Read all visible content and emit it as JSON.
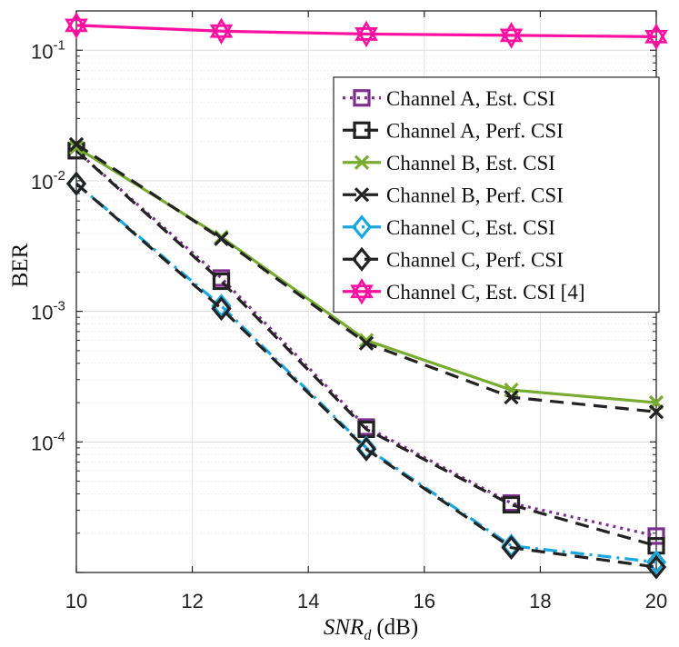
{
  "chart_data": {
    "type": "line",
    "title": "",
    "xlabel": "SNR_d (dB)",
    "xlabel_main": "SNR",
    "xlabel_sub": "d",
    "xlabel_unit": "(dB)",
    "ylabel": "BER",
    "xlim": [
      10,
      20
    ],
    "ylim": [
      1e-05,
      0.2
    ],
    "yscale": "log",
    "grid": true,
    "legend_position": "top-right",
    "x_ticks": [
      "10",
      "12",
      "14",
      "16",
      "18",
      "20"
    ],
    "y_ticks": [
      {
        "base": "10",
        "exp": "-1"
      },
      {
        "base": "10",
        "exp": "-2"
      },
      {
        "base": "10",
        "exp": "-3"
      },
      {
        "base": "10",
        "exp": "-4"
      }
    ],
    "x": [
      10,
      12.5,
      15,
      17.5,
      20
    ],
    "series": [
      {
        "name": "Channel A, Est.  CSI",
        "color": "#7e2f8e",
        "dash": "dot",
        "marker": "square",
        "values": [
          0.017,
          0.0018,
          0.00013,
          3.4e-05,
          1.9e-05
        ]
      },
      {
        "name": "Channel A, Perf.  CSI",
        "color": "#222222",
        "dash": "dash",
        "marker": "square",
        "values": [
          0.017,
          0.0017,
          0.000125,
          3.3e-05,
          1.6e-05
        ]
      },
      {
        "name": "Channel B, Est.  CSI",
        "color": "#77ac30",
        "dash": "solid",
        "marker": "x",
        "values": [
          0.018,
          0.0037,
          0.0006,
          0.00025,
          0.0002
        ]
      },
      {
        "name": "Channel B, Perf.  CSI",
        "color": "#222222",
        "dash": "dash",
        "marker": "x",
        "values": [
          0.019,
          0.0036,
          0.00057,
          0.00022,
          0.00017
        ]
      },
      {
        "name": "Channel C, Est.  CSI",
        "color": "#1aa7e0",
        "dash": "dashdot",
        "marker": "diamond",
        "values": [
          0.0095,
          0.0011,
          9e-05,
          1.6e-05,
          1.2e-05
        ]
      },
      {
        "name": "Channel C, Perf.  CSI",
        "color": "#222222",
        "dash": "dash",
        "marker": "diamond",
        "values": [
          0.0095,
          0.00105,
          8.8e-05,
          1.55e-05,
          1.1e-05
        ]
      },
      {
        "name": "Channel C, Est.  CSI [4]",
        "color": "#ff10a0",
        "dash": "solid",
        "marker": "hexagram",
        "values": [
          0.155,
          0.14,
          0.133,
          0.13,
          0.127
        ]
      }
    ]
  }
}
